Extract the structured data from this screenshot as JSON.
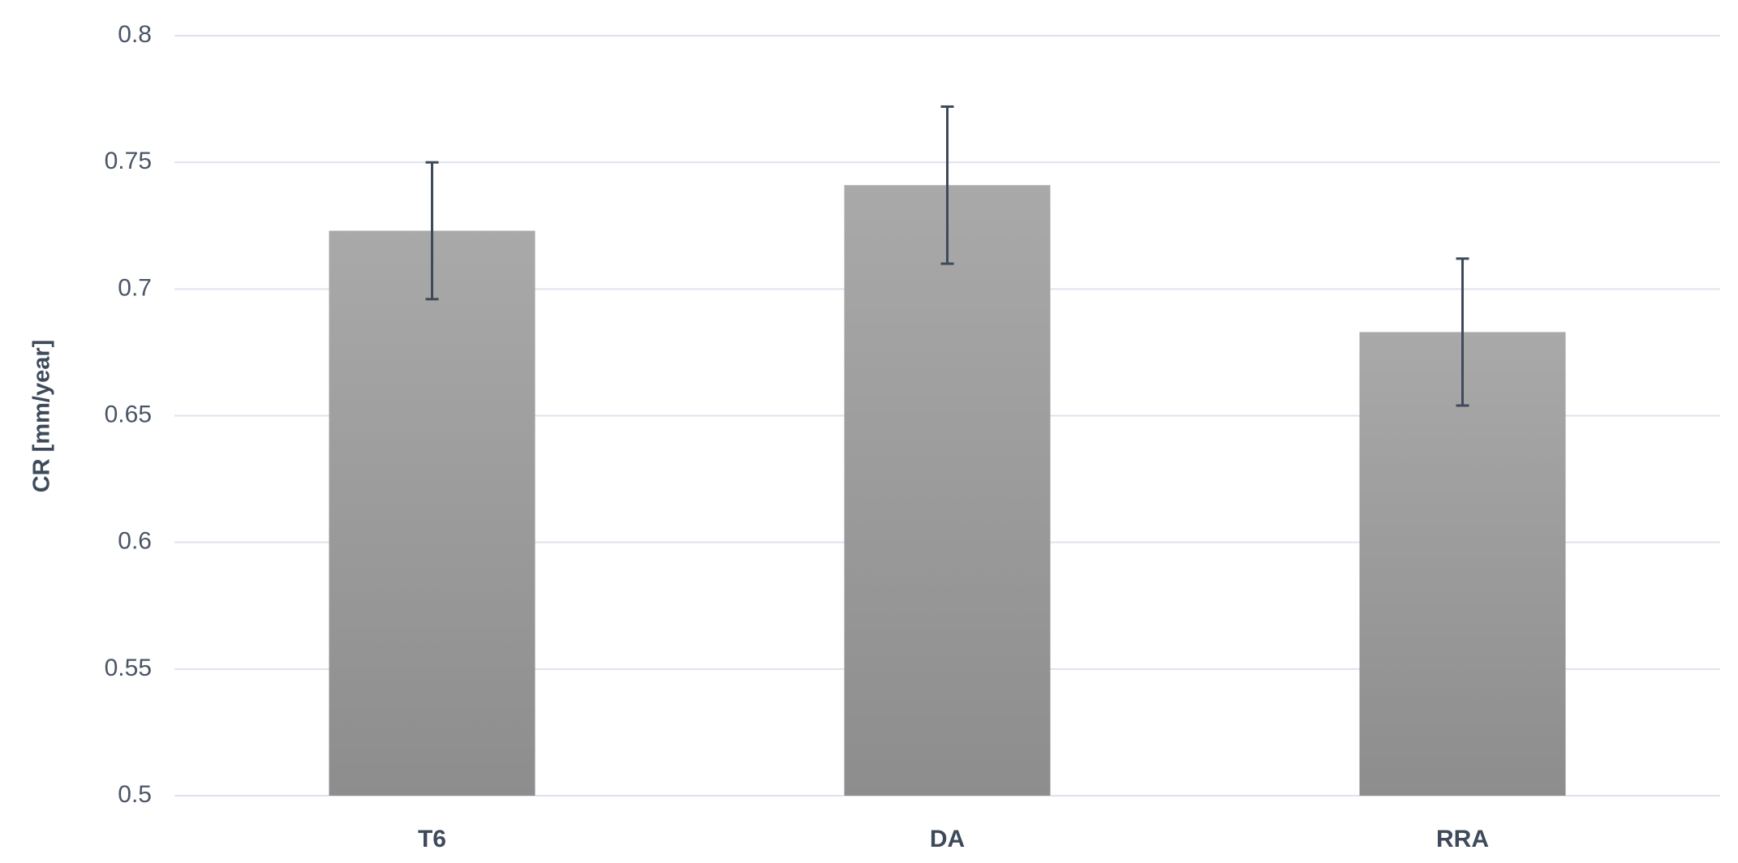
{
  "chart_data": {
    "type": "bar",
    "y_label": "CR [mm/year]",
    "categories": [
      "T6",
      "DA",
      "RRA"
    ],
    "values": [
      0.723,
      0.741,
      0.683
    ],
    "errors": [
      0.027,
      0.031,
      0.029
    ],
    "color": "#9a9a9a",
    "error_color": "#3e4a5a",
    "ylim": [
      0.5,
      0.8
    ],
    "yticks": [
      0.5,
      0.55,
      0.6,
      0.65,
      0.7,
      0.75,
      0.8
    ],
    "grid": true
  }
}
